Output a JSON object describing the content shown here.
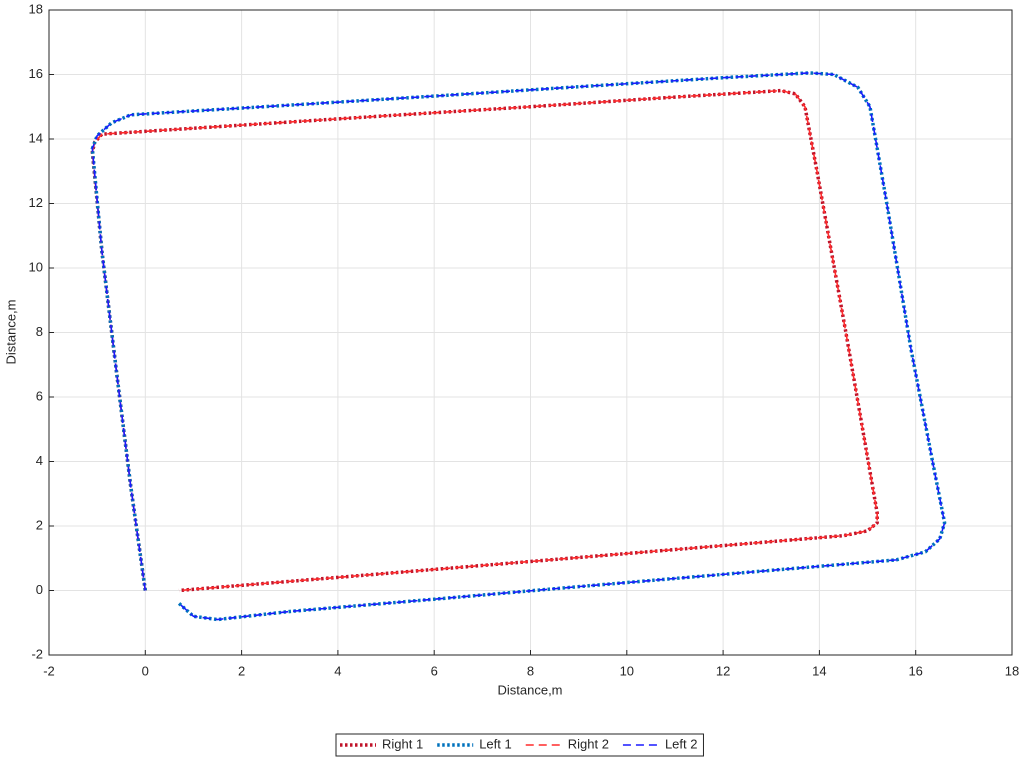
{
  "chart_data": {
    "type": "line",
    "x_label": "Distance,m",
    "y_label": "Distance,m",
    "xlim": [
      -2,
      18
    ],
    "ylim": [
      -2,
      18
    ],
    "xticks": [
      -2,
      0,
      2,
      4,
      6,
      8,
      10,
      12,
      14,
      16,
      18
    ],
    "yticks": [
      -2,
      0,
      2,
      4,
      6,
      8,
      10,
      12,
      14,
      16,
      18
    ],
    "grid": true,
    "legend": "bottom",
    "series": [
      {
        "name": "Right 1",
        "color": "#c0142a",
        "style": "dotted",
        "x": [
          0,
          -0.3,
          -0.6,
          -0.9,
          -1.1,
          -1.05,
          -0.9,
          2,
          5,
          8,
          11,
          13.2,
          13.5,
          13.7,
          13.95,
          14.55,
          15.2,
          15.2,
          15.0,
          14.5,
          11,
          8,
          5,
          2,
          0.7
        ],
        "values": [
          0,
          3.2,
          6.8,
          10.5,
          13.6,
          13.9,
          14.15,
          14.43,
          14.72,
          15.0,
          15.3,
          15.5,
          15.4,
          15.0,
          13.0,
          8.0,
          2.4,
          2.1,
          1.85,
          1.7,
          1.27,
          0.9,
          0.53,
          0.16,
          0.0
        ]
      },
      {
        "name": "Left 1",
        "color": "#0072bd",
        "style": "dotted",
        "x": [
          0,
          -0.3,
          -0.6,
          -0.9,
          -1.1,
          -1.0,
          -0.7,
          -0.3,
          3,
          6,
          9,
          12,
          13.8,
          14.3,
          14.8,
          15.05,
          15.4,
          15.9,
          16.35,
          16.6,
          16.5,
          16.2,
          15.6,
          12,
          9,
          6,
          3,
          1.5,
          1.0,
          0.7
        ],
        "values": [
          0,
          3.2,
          6.8,
          10.5,
          13.7,
          14.1,
          14.5,
          14.75,
          15.05,
          15.33,
          15.62,
          15.9,
          16.05,
          16.0,
          15.6,
          15.0,
          12.0,
          7.5,
          4.0,
          2.1,
          1.6,
          1.2,
          0.95,
          0.5,
          0.12,
          -0.27,
          -0.65,
          -0.9,
          -0.8,
          -0.4
        ]
      },
      {
        "name": "Right 2",
        "color": "#ff2b2b",
        "style": "dashed",
        "x": [
          0,
          -0.3,
          -0.6,
          -0.9,
          -1.1,
          -1.05,
          -0.9,
          2,
          5,
          8,
          11,
          13.2,
          13.5,
          13.7,
          13.95,
          14.55,
          15.2,
          15.2,
          15.0,
          14.5,
          11,
          8,
          5,
          2,
          0.7
        ],
        "values": [
          0,
          3.2,
          6.8,
          10.5,
          13.6,
          13.9,
          14.15,
          14.43,
          14.72,
          15.0,
          15.3,
          15.5,
          15.4,
          15.0,
          13.0,
          8.0,
          2.4,
          2.1,
          1.85,
          1.7,
          1.27,
          0.9,
          0.53,
          0.16,
          0.0
        ]
      },
      {
        "name": "Left 2",
        "color": "#1a1aff",
        "style": "dashed",
        "x": [
          0,
          -0.3,
          -0.6,
          -0.9,
          -1.1,
          -1.0,
          -0.7,
          -0.3,
          3,
          6,
          9,
          12,
          13.8,
          14.3,
          14.8,
          15.05,
          15.4,
          15.9,
          16.35,
          16.6,
          16.5,
          16.2,
          15.6,
          12,
          9,
          6,
          3,
          1.5,
          1.0,
          0.7
        ],
        "values": [
          0,
          3.2,
          6.8,
          10.5,
          13.7,
          14.1,
          14.5,
          14.75,
          15.05,
          15.33,
          15.62,
          15.9,
          16.05,
          16.0,
          15.6,
          15.0,
          12.0,
          7.5,
          4.0,
          2.1,
          1.6,
          1.2,
          0.95,
          0.5,
          0.12,
          -0.27,
          -0.65,
          -0.9,
          -0.8,
          -0.4
        ]
      }
    ]
  }
}
